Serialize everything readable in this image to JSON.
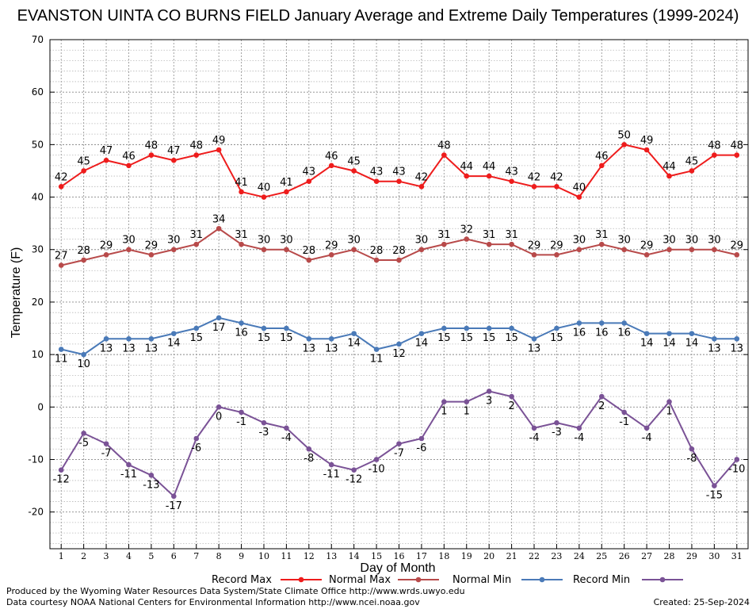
{
  "chart_data": {
    "type": "line",
    "title": "EVANSTON UINTA CO BURNS FIELD January Average and Extreme Daily Temperatures (1999-2024)",
    "xlabel": "Day of Month",
    "ylabel": "Temperature (F)",
    "ylim": [
      -27,
      70
    ],
    "yticks": [
      -20,
      -10,
      0,
      10,
      20,
      30,
      40,
      50,
      60,
      70
    ],
    "grid": true,
    "legend_position": "bottom",
    "x": [
      1,
      2,
      3,
      4,
      5,
      6,
      7,
      8,
      9,
      10,
      11,
      12,
      13,
      14,
      15,
      16,
      17,
      18,
      19,
      20,
      21,
      22,
      23,
      24,
      25,
      26,
      27,
      28,
      29,
      30,
      31
    ],
    "series": [
      {
        "name": "Record Max",
        "color": "#ee1c1c",
        "label_position": "above",
        "values": [
          42,
          45,
          47,
          46,
          48,
          47,
          48,
          49,
          41,
          40,
          41,
          43,
          46,
          45,
          43,
          43,
          42,
          48,
          44,
          44,
          43,
          42,
          42,
          40,
          46,
          50,
          49,
          44,
          45,
          48,
          48
        ]
      },
      {
        "name": "Normal Max",
        "color": "#b84a4a",
        "label_position": "above",
        "values": [
          27,
          28,
          29,
          30,
          29,
          30,
          31,
          34,
          31,
          30,
          30,
          28,
          29,
          30,
          28,
          28,
          30,
          31,
          32,
          31,
          31,
          29,
          29,
          30,
          31,
          30,
          29,
          30,
          30,
          30,
          29
        ]
      },
      {
        "name": "Normal Min",
        "color": "#4a7ab8",
        "label_position": "below",
        "values": [
          11,
          10,
          13,
          13,
          13,
          14,
          15,
          17,
          16,
          15,
          15,
          13,
          13,
          14,
          11,
          12,
          14,
          15,
          15,
          15,
          15,
          13,
          15,
          16,
          16,
          16,
          14,
          14,
          14,
          13,
          13
        ]
      },
      {
        "name": "Record Min",
        "color": "#7a5296",
        "label_position": "below",
        "values": [
          -12,
          -5,
          -7,
          -11,
          -13,
          -17,
          -6,
          0,
          -1,
          -3,
          -4,
          -8,
          -11,
          -12,
          -10,
          -7,
          -6,
          1,
          1,
          3,
          2,
          -4,
          -3,
          -4,
          2,
          -1,
          -4,
          1,
          -8,
          -15,
          -10
        ]
      }
    ]
  },
  "footer": {
    "produced_by": "Produced by the Wyoming Water Resources Data System/State Climate Office http://www.wrds.uwyo.edu",
    "courtesy": "Data courtesy NOAA National Centers for Environmental Information http://www.ncei.noaa.gov",
    "created": "Created:  25-Sep-2024"
  }
}
